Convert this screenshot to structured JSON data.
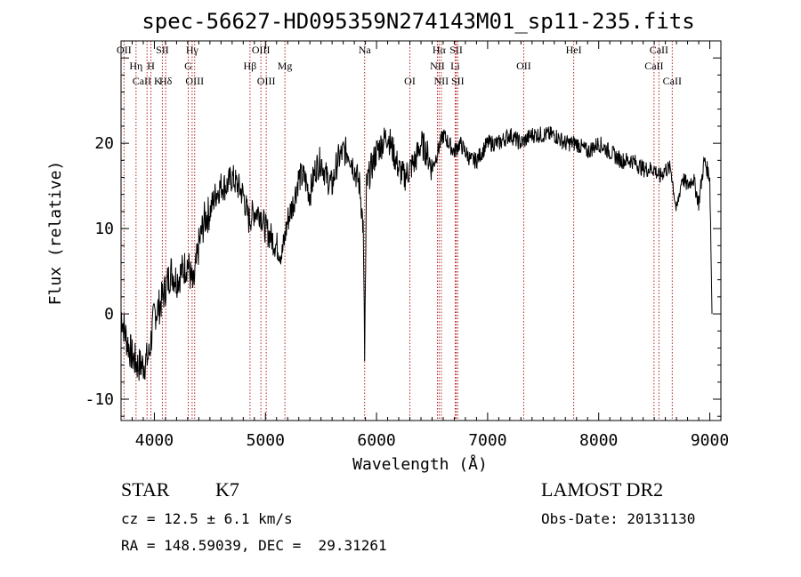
{
  "chart_data": {
    "type": "line",
    "title": "spec-56627-HD095359N274143M01_sp11-235.fits",
    "xlabel": "Wavelength (Å)",
    "ylabel": "Flux (relative)",
    "xlim": [
      3700,
      9100
    ],
    "ylim": [
      -12.5,
      32
    ],
    "xticks": [
      4000,
      5000,
      6000,
      7000,
      8000,
      9000
    ],
    "yticks": [
      -10,
      0,
      10,
      20
    ],
    "grid": false,
    "series": [
      {
        "x": [
          3700,
          3750,
          3800,
          3850,
          3900,
          3950,
          4000,
          4050,
          4100,
          4150,
          4200,
          4250,
          4300,
          4350,
          4400,
          4450,
          4500,
          4550,
          4600,
          4650,
          4700,
          4750,
          4800,
          4850,
          4900,
          4950,
          5000,
          5050,
          5100,
          5150,
          5200,
          5250,
          5300,
          5350,
          5400,
          5450,
          5500,
          5550,
          5600,
          5650,
          5700,
          5750,
          5800,
          5850,
          5880,
          5893,
          5910,
          5950,
          6000,
          6050,
          6100,
          6150,
          6200,
          6250,
          6300,
          6350,
          6400,
          6450,
          6500,
          6550,
          6600,
          6650,
          6700,
          6750,
          6800,
          6850,
          6900,
          6950,
          7000,
          7100,
          7200,
          7300,
          7400,
          7500,
          7600,
          7700,
          7800,
          7900,
          8000,
          8100,
          8200,
          8300,
          8400,
          8500,
          8550,
          8600,
          8650,
          8700,
          8750,
          8800,
          8850,
          8900,
          8950,
          9000,
          9010,
          9020
        ],
        "y": [
          0,
          -3,
          -5,
          -6,
          -6,
          -5,
          0,
          1,
          3,
          5,
          4,
          5,
          6,
          3,
          8,
          11,
          12,
          14,
          15,
          15,
          16,
          15,
          14,
          11,
          12,
          12,
          10,
          9,
          8,
          7,
          11,
          13,
          16,
          16,
          14,
          17,
          18,
          16,
          15,
          18,
          19,
          19,
          17,
          15,
          10,
          -5,
          15,
          17,
          19,
          20,
          21,
          19,
          17,
          16,
          17,
          18,
          20,
          19,
          17,
          19,
          21,
          20,
          19,
          20,
          19,
          18,
          18,
          19,
          20,
          20,
          21,
          20,
          21,
          21,
          21,
          20,
          20,
          19,
          20,
          19,
          18,
          18,
          17,
          17,
          16,
          17,
          17,
          12,
          16,
          15,
          16,
          13,
          18,
          16,
          8,
          0
        ]
      }
    ],
    "lines": [
      {
        "label": "OII",
        "wl": 3727,
        "row": 1
      },
      {
        "label": "Hη",
        "wl": 3835,
        "row": 2
      },
      {
        "label": "H",
        "wl": 3969,
        "row": 2
      },
      {
        "label": "CaII K",
        "wl": 3934,
        "row": 3
      },
      {
        "label": "SII",
        "wl": 4072,
        "row": 1
      },
      {
        "label": "Hδ",
        "wl": 4102,
        "row": 3
      },
      {
        "label": "Hγ",
        "wl": 4340,
        "row": 1
      },
      {
        "label": "G",
        "wl": 4305,
        "row": 2
      },
      {
        "label": "OIII",
        "wl": 4363,
        "row": 3
      },
      {
        "label": "OIII",
        "wl": 4959,
        "row": 1
      },
      {
        "label": "Hβ",
        "wl": 4861,
        "row": 2
      },
      {
        "label": "OIII",
        "wl": 5007,
        "row": 3
      },
      {
        "label": "Mg",
        "wl": 5175,
        "row": 2
      },
      {
        "label": "Na",
        "wl": 5893,
        "row": 1
      },
      {
        "label": "OI",
        "wl": 6300,
        "row": 3
      },
      {
        "label": "Hα",
        "wl": 6563,
        "row": 1
      },
      {
        "label": "NII",
        "wl": 6548,
        "row": 2
      },
      {
        "label": "NII",
        "wl": 6583,
        "row": 3
      },
      {
        "label": "SII",
        "wl": 6717,
        "row": 1
      },
      {
        "label": "Li",
        "wl": 6708,
        "row": 2
      },
      {
        "label": "SII",
        "wl": 6731,
        "row": 3
      },
      {
        "label": "OII",
        "wl": 7325,
        "row": 2
      },
      {
        "label": "HeI",
        "wl": 7775,
        "row": 1
      },
      {
        "label": "CaII",
        "wl": 8542,
        "row": 1
      },
      {
        "label": "CaII",
        "wl": 8498,
        "row": 2
      },
      {
        "label": "CaII",
        "wl": 8662,
        "row": 3
      }
    ]
  },
  "info": {
    "class": "STAR",
    "subclass": "K7",
    "survey": "LAMOST DR2",
    "cz": "cz = 12.5 ± 6.1 km/s",
    "obs_date": "Obs-Date: 20131130",
    "radec": "RA = 148.59039, DEC =  29.31261"
  }
}
